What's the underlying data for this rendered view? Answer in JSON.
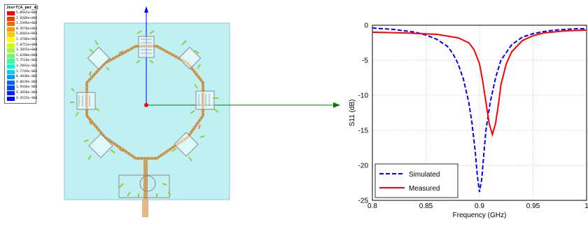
{
  "simulation": {
    "legend_title": "Jsurf[A_per_m]",
    "legend_values": [
      "5.0942e+002",
      "2.8209e+002",
      "1.5496e+002",
      "8.4578e+001",
      "5.0401e+001",
      "1.4786e+001",
      "7.0752e+000",
      "3.3855e+000",
      "1.6200e+000",
      "7.7518e-001",
      "3.7093e-001",
      "1.7749e-001",
      "8.4930e-002",
      "4.0639e-002",
      "1.9446e-002",
      "9.3050e-003",
      "4.4525e-003"
    ],
    "legend_colors": [
      "#ff0000",
      "#ff3300",
      "#ff6600",
      "#ff9900",
      "#ffcc00",
      "#ffff00",
      "#ccff00",
      "#99ff33",
      "#66ff66",
      "#33ff99",
      "#00ffcc",
      "#00ccff",
      "#0099ff",
      "#0066ff",
      "#0044ff",
      "#0022ff",
      "#0000ff"
    ],
    "colors": {
      "substrate": "#bff0f4",
      "axis_z": "#0000ff",
      "axis_x": "#008000",
      "origin": "#ff0000",
      "trace": "#d2a05a"
    }
  },
  "chart_data": {
    "type": "line",
    "xlabel": "Frequency (GHz)",
    "ylabel": "S11 (dB)",
    "xlim": [
      0.8,
      1.0
    ],
    "ylim": [
      -25,
      0
    ],
    "xticks": [
      "0.8",
      "0.85",
      "0.9",
      "0.95",
      "1"
    ],
    "yticks": [
      "0",
      "-5",
      "-10",
      "-15",
      "-20",
      "-25"
    ],
    "grid": true,
    "legend_position": "bottom-left",
    "series": [
      {
        "name": "Simulated",
        "color": "#0000ff",
        "style": "dashed",
        "x": [
          0.8,
          0.82,
          0.84,
          0.85,
          0.86,
          0.87,
          0.875,
          0.88,
          0.885,
          0.89,
          0.893,
          0.896,
          0.898,
          0.9,
          0.902,
          0.904,
          0.906,
          0.91,
          0.915,
          0.92,
          0.93,
          0.94,
          0.95,
          0.96,
          0.97,
          0.98,
          0.99,
          1.0
        ],
        "y": [
          -0.4,
          -0.6,
          -1.0,
          -1.4,
          -2.0,
          -3.0,
          -4.0,
          -5.5,
          -7.7,
          -11.0,
          -14.0,
          -18.0,
          -21.5,
          -23.8,
          -22.0,
          -18.5,
          -15.0,
          -11.0,
          -7.5,
          -5.0,
          -2.8,
          -1.7,
          -1.2,
          -0.9,
          -0.7,
          -0.6,
          -0.5,
          -0.5
        ]
      },
      {
        "name": "Measured",
        "color": "#ff0000",
        "style": "solid",
        "x": [
          0.8,
          0.83,
          0.86,
          0.88,
          0.89,
          0.895,
          0.9,
          0.903,
          0.906,
          0.909,
          0.912,
          0.915,
          0.918,
          0.92,
          0.925,
          0.93,
          0.94,
          0.95,
          0.96,
          0.98,
          1.0
        ],
        "y": [
          -1.0,
          -1.1,
          -1.3,
          -1.8,
          -2.5,
          -3.5,
          -5.5,
          -8.0,
          -11.0,
          -14.0,
          -15.6,
          -14.0,
          -11.0,
          -8.5,
          -5.5,
          -3.8,
          -2.2,
          -1.5,
          -1.1,
          -0.8,
          -0.7
        ]
      }
    ]
  }
}
